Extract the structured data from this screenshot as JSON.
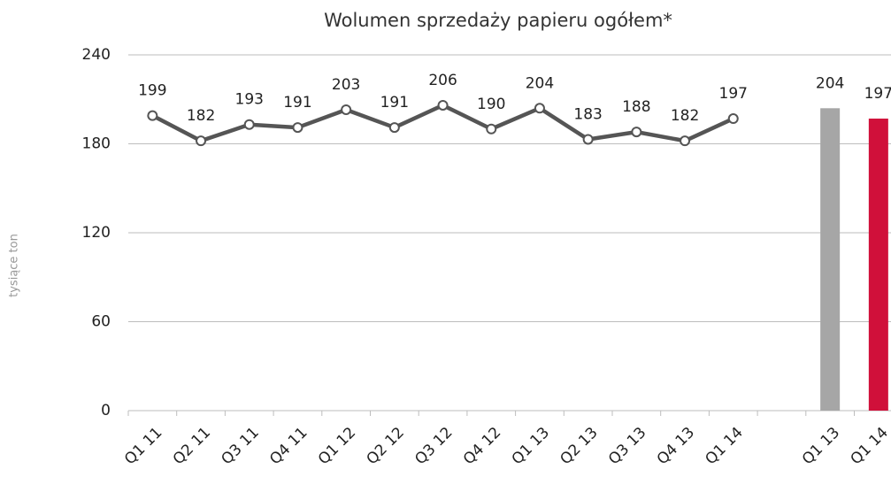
{
  "chart_data": [
    {
      "type": "line",
      "title": "Wolumen sprzedaży papieru ogółem*",
      "y_label": "tysiące ton",
      "categories": [
        "Q1 11",
        "Q2 11",
        "Q3 11",
        "Q4 11",
        "Q1 12",
        "Q2 12",
        "Q3 12",
        "Q4 12",
        "Q1 13",
        "Q2 13",
        "Q3 13",
        "Q4 13",
        "Q1 14"
      ],
      "values": [
        199,
        182,
        193,
        191,
        203,
        191,
        206,
        190,
        204,
        183,
        188,
        182,
        197
      ],
      "color": "#555555",
      "ylim": [
        0,
        240
      ],
      "yticks": [
        0,
        60,
        120,
        180,
        240
      ],
      "grid": true
    },
    {
      "type": "bar",
      "categories": [
        "Q1 13",
        "Q1 14"
      ],
      "values": [
        204,
        197
      ],
      "colors": [
        "#a6a6a6",
        "#d0103a"
      ],
      "ylim": [
        0,
        240
      ]
    }
  ]
}
